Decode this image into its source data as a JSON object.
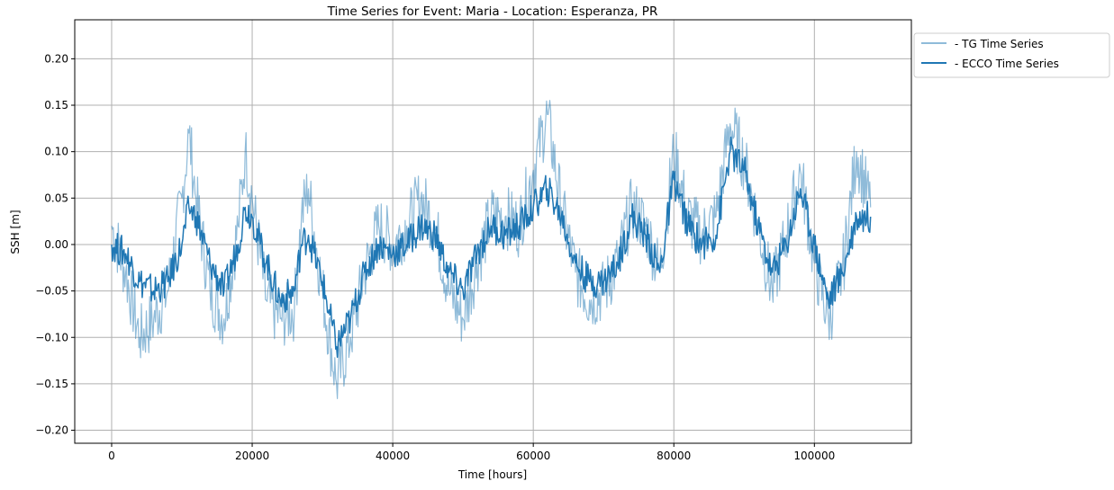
{
  "chart_data": {
    "type": "line",
    "title": "Time Series for Event: Maria - Location: Esperanza, PR",
    "xlabel": "Time [hours]",
    "ylabel": "SSH [m]",
    "xlim": [
      -5250,
      113800
    ],
    "ylim": [
      -0.214,
      0.242
    ],
    "xticks": [
      0,
      20000,
      40000,
      60000,
      80000,
      100000
    ],
    "xtick_labels": [
      "0",
      "20000",
      "40000",
      "60000",
      "80000",
      "100000"
    ],
    "yticks": [
      -0.2,
      -0.15,
      -0.1,
      -0.05,
      0.0,
      0.05,
      0.1,
      0.15,
      0.2
    ],
    "ytick_labels": [
      "−0.20",
      "−0.15",
      "−0.10",
      "−0.05",
      "0.00",
      "0.05",
      "0.10",
      "0.15",
      "0.20"
    ],
    "grid": true,
    "legend_placement": "outside-top-right",
    "x": [
      0,
      2000,
      4000,
      6000,
      8000,
      10000,
      11000,
      12000,
      14000,
      16000,
      18000,
      19000,
      20000,
      22000,
      24000,
      26000,
      27000,
      28000,
      30000,
      32000,
      34000,
      36000,
      38000,
      40000,
      42000,
      44000,
      46000,
      48000,
      50000,
      52000,
      54000,
      56000,
      58000,
      60000,
      62000,
      64000,
      66000,
      68000,
      70000,
      72000,
      74000,
      76000,
      78000,
      80000,
      82000,
      84000,
      86000,
      88000,
      90000,
      92000,
      94000,
      96000,
      98000,
      100000,
      102000,
      104000,
      106000,
      108000
    ],
    "series": [
      {
        "name": "- TG Time Series",
        "color": "#1f77b4",
        "alpha": 0.5,
        "values": [
          0.02,
          -0.03,
          -0.1,
          -0.08,
          -0.05,
          0.05,
          0.12,
          0.05,
          -0.05,
          -0.08,
          0.02,
          0.1,
          0.05,
          -0.06,
          -0.08,
          -0.07,
          0.03,
          0.06,
          -0.05,
          -0.15,
          -0.1,
          -0.03,
          0.02,
          0.0,
          0.02,
          0.05,
          0.02,
          -0.05,
          -0.08,
          -0.02,
          0.03,
          0.03,
          0.02,
          0.08,
          0.14,
          0.04,
          -0.03,
          -0.06,
          -0.05,
          -0.02,
          0.04,
          0.02,
          -0.03,
          0.1,
          0.03,
          0.01,
          0.03,
          0.13,
          0.09,
          0.02,
          -0.05,
          0.01,
          0.08,
          -0.02,
          -0.08,
          -0.03,
          0.1,
          0.04
        ]
      },
      {
        "name": "- ECCO Time Series",
        "color": "#1f77b4",
        "alpha": 1.0,
        "values": [
          0.0,
          -0.01,
          -0.04,
          -0.05,
          -0.04,
          0.0,
          0.04,
          0.03,
          -0.02,
          -0.05,
          0.0,
          0.04,
          0.03,
          -0.02,
          -0.06,
          -0.05,
          0.0,
          0.01,
          -0.04,
          -0.11,
          -0.08,
          -0.03,
          0.0,
          -0.01,
          0.0,
          0.02,
          0.01,
          -0.03,
          -0.05,
          -0.01,
          0.02,
          0.01,
          0.02,
          0.04,
          0.06,
          0.03,
          -0.02,
          -0.04,
          -0.04,
          -0.02,
          0.03,
          0.01,
          -0.03,
          0.07,
          0.02,
          0.0,
          0.01,
          0.1,
          0.08,
          0.02,
          -0.03,
          0.0,
          0.06,
          0.0,
          -0.06,
          -0.03,
          0.03,
          0.03
        ]
      }
    ]
  }
}
